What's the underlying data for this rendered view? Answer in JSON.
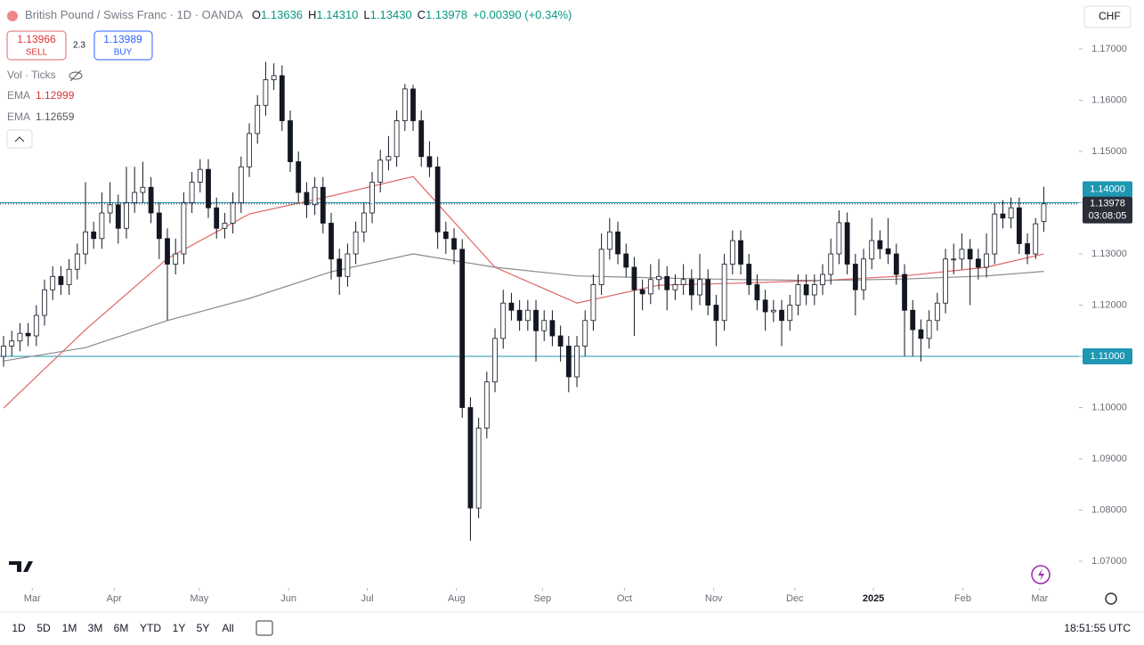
{
  "header": {
    "symbol": "British Pound / Swiss Franc · 1D · OANDA",
    "ohlc": [
      {
        "key": "O",
        "value": "1.13636"
      },
      {
        "key": "H",
        "value": "1.14310"
      },
      {
        "key": "L",
        "value": "1.13430"
      },
      {
        "key": "C",
        "value": "1.13978"
      }
    ],
    "change": "+0.00390 (+0.34%)"
  },
  "trade": {
    "sell_price": "1.13966",
    "sell": "SELL",
    "spread": "2.3",
    "buy_price": "1.13989",
    "buy": "BUY"
  },
  "currency": "CHF",
  "volume": "Vol · Ticks",
  "toolbar": {
    "ranges": [
      "1D",
      "5D",
      "1M",
      "3M",
      "6M",
      "YTD",
      "1Y",
      "5Y",
      "All"
    ],
    "clock": "18:51:55 UTC"
  },
  "chart_data": {
    "type": "candlestick",
    "open": [
      1.11,
      1.112,
      1.113,
      1.1145,
      1.114,
      1.118,
      1.123,
      1.1256,
      1.124,
      1.127,
      1.13,
      1.1343,
      1.133,
      1.138,
      1.1396,
      1.135,
      1.14,
      1.142,
      1.143,
      1.138,
      1.133,
      1.128,
      1.13,
      1.14,
      1.144,
      1.1465,
      1.139,
      1.135,
      1.136,
      1.14,
      1.147,
      1.1535,
      1.159,
      1.164,
      1.1648,
      1.156,
      1.148,
      1.142,
      1.1396,
      1.143,
      1.136,
      1.129,
      1.1256,
      1.13,
      1.1343,
      1.138,
      1.144,
      1.1483,
      1.149,
      1.156,
      1.1622,
      1.156,
      1.149,
      1.147,
      1.1343,
      1.133,
      1.1309,
      1.1,
      1.0804,
      1.096,
      1.105,
      1.1135,
      1.1204,
      1.119,
      1.117,
      1.119,
      1.115,
      1.117,
      1.114,
      1.112,
      1.106,
      1.112,
      1.117,
      1.124,
      1.1309,
      1.1343,
      1.13,
      1.1274,
      1.123,
      1.1222,
      1.125,
      1.1256,
      1.123,
      1.124,
      1.125,
      1.122,
      1.125,
      1.12,
      1.117,
      1.128,
      1.1326,
      1.128,
      1.124,
      1.121,
      1.1187,
      1.119,
      1.117,
      1.12,
      1.124,
      1.122,
      1.124,
      1.126,
      1.13,
      1.1361,
      1.128,
      1.123,
      1.129,
      1.1326,
      1.131,
      1.13,
      1.126,
      1.119,
      1.1152,
      1.1135,
      1.117,
      1.1204,
      1.129,
      1.129,
      1.1309,
      1.129,
      1.1274,
      1.13,
      1.1378,
      1.137,
      1.139,
      1.132,
      1.13,
      1.13636
    ],
    "high": [
      1.114,
      1.115,
      1.1165,
      1.1165,
      1.12,
      1.125,
      1.1276,
      1.1276,
      1.129,
      1.132,
      1.144,
      1.1363,
      1.142,
      1.144,
      1.1416,
      1.147,
      1.147,
      1.148,
      1.145,
      1.14,
      1.135,
      1.133,
      1.142,
      1.146,
      1.1485,
      1.1485,
      1.141,
      1.138,
      1.142,
      1.149,
      1.1555,
      1.161,
      1.1675,
      1.1672,
      1.1668,
      1.158,
      1.15,
      1.144,
      1.145,
      1.145,
      1.138,
      1.131,
      1.132,
      1.1363,
      1.14,
      1.146,
      1.1503,
      1.153,
      1.158,
      1.1632,
      1.163,
      1.158,
      1.152,
      1.149,
      1.1363,
      1.135,
      1.1329,
      1.102,
      1.098,
      1.107,
      1.1155,
      1.123,
      1.1224,
      1.121,
      1.121,
      1.121,
      1.119,
      1.119,
      1.116,
      1.114,
      1.114,
      1.119,
      1.126,
      1.134,
      1.137,
      1.1363,
      1.132,
      1.1294,
      1.125,
      1.128,
      1.129,
      1.1276,
      1.126,
      1.128,
      1.127,
      1.13,
      1.127,
      1.122,
      1.13,
      1.1346,
      1.1346,
      1.13,
      1.126,
      1.123,
      1.121,
      1.121,
      1.122,
      1.126,
      1.126,
      1.126,
      1.128,
      1.133,
      1.1385,
      1.1381,
      1.13,
      1.131,
      1.137,
      1.1346,
      1.137,
      1.132,
      1.128,
      1.121,
      1.1172,
      1.119,
      1.1224,
      1.131,
      1.132,
      1.134,
      1.1329,
      1.131,
      1.134,
      1.1398,
      1.1405,
      1.141,
      1.141,
      1.134,
      1.137,
      1.1431
    ],
    "low": [
      1.108,
      1.11,
      1.111,
      1.112,
      1.112,
      1.116,
      1.121,
      1.122,
      1.122,
      1.125,
      1.128,
      1.131,
      1.131,
      1.136,
      1.132,
      1.133,
      1.138,
      1.14,
      1.136,
      1.129,
      1.117,
      1.126,
      1.128,
      1.138,
      1.142,
      1.137,
      1.133,
      1.133,
      1.134,
      1.138,
      1.145,
      1.1515,
      1.157,
      1.162,
      1.154,
      1.146,
      1.14,
      1.137,
      1.1376,
      1.134,
      1.125,
      1.122,
      1.1236,
      1.128,
      1.1323,
      1.136,
      1.142,
      1.1463,
      1.147,
      1.154,
      1.154,
      1.147,
      1.145,
      1.131,
      1.13,
      1.128,
      1.098,
      1.074,
      1.0784,
      1.094,
      1.103,
      1.1115,
      1.117,
      1.115,
      1.115,
      1.109,
      1.113,
      1.112,
      1.109,
      1.103,
      1.104,
      1.11,
      1.115,
      1.122,
      1.1289,
      1.128,
      1.1254,
      1.114,
      1.119,
      1.1202,
      1.123,
      1.119,
      1.121,
      1.122,
      1.119,
      1.12,
      1.118,
      1.112,
      1.115,
      1.126,
      1.126,
      1.122,
      1.119,
      1.115,
      1.1167,
      1.112,
      1.115,
      1.118,
      1.12,
      1.12,
      1.122,
      1.124,
      1.128,
      1.126,
      1.118,
      1.121,
      1.127,
      1.129,
      1.128,
      1.124,
      1.11,
      1.11,
      1.109,
      1.1115,
      1.115,
      1.1184,
      1.126,
      1.127,
      1.12,
      1.125,
      1.1254,
      1.128,
      1.135,
      1.135,
      1.13,
      1.128,
      1.129,
      1.1343
    ],
    "close": [
      1.112,
      1.113,
      1.1145,
      1.114,
      1.118,
      1.123,
      1.1256,
      1.124,
      1.127,
      1.13,
      1.1343,
      1.133,
      1.138,
      1.1396,
      1.135,
      1.14,
      1.142,
      1.143,
      1.138,
      1.133,
      1.128,
      1.13,
      1.14,
      1.144,
      1.1465,
      1.139,
      1.135,
      1.136,
      1.14,
      1.147,
      1.1535,
      1.159,
      1.164,
      1.1648,
      1.156,
      1.148,
      1.142,
      1.1396,
      1.143,
      1.136,
      1.129,
      1.1256,
      1.13,
      1.1343,
      1.138,
      1.144,
      1.1483,
      1.149,
      1.156,
      1.1622,
      1.156,
      1.149,
      1.147,
      1.1343,
      1.133,
      1.1309,
      1.1,
      1.0804,
      1.096,
      1.105,
      1.1135,
      1.1204,
      1.119,
      1.117,
      1.119,
      1.115,
      1.117,
      1.114,
      1.112,
      1.106,
      1.112,
      1.117,
      1.124,
      1.1309,
      1.1343,
      1.13,
      1.1274,
      1.123,
      1.1222,
      1.125,
      1.1256,
      1.123,
      1.124,
      1.125,
      1.122,
      1.125,
      1.12,
      1.117,
      1.128,
      1.1326,
      1.128,
      1.124,
      1.121,
      1.1187,
      1.119,
      1.117,
      1.12,
      1.124,
      1.122,
      1.124,
      1.126,
      1.13,
      1.1361,
      1.128,
      1.123,
      1.129,
      1.1326,
      1.131,
      1.13,
      1.126,
      1.119,
      1.1152,
      1.1135,
      1.117,
      1.1204,
      1.129,
      1.129,
      1.1309,
      1.129,
      1.1274,
      1.13,
      1.1378,
      1.137,
      1.139,
      1.132,
      1.13,
      1.13588,
      1.13978
    ],
    "series": [
      {
        "name": "EMA",
        "color": "#e06666",
        "x": [
          0,
          10,
          20,
          30,
          40,
          50,
          60,
          70,
          80,
          90,
          100,
          110,
          120,
          127
        ],
        "values": [
          1.0999,
          1.1152,
          1.1291,
          1.1378,
          1.1413,
          1.1451,
          1.1274,
          1.1204,
          1.1239,
          1.1243,
          1.1248,
          1.1257,
          1.1274,
          1.12999
        ]
      },
      {
        "name": "EMA",
        "color": "#8a8a8a",
        "x": [
          0,
          10,
          20,
          30,
          40,
          50,
          60,
          70,
          80,
          90,
          100,
          110,
          120,
          127
        ],
        "values": [
          1.1091,
          1.1117,
          1.117,
          1.1213,
          1.1265,
          1.13,
          1.1274,
          1.1257,
          1.1253,
          1.125,
          1.1248,
          1.1251,
          1.1257,
          1.12659
        ]
      }
    ],
    "levels": [
      {
        "value": 1.14,
        "label": "1.14000",
        "color": "#1e97b3"
      },
      {
        "value": 1.11,
        "label": "1.11000",
        "color": "#1e97b3"
      }
    ],
    "last_label": "1.13978",
    "countdown": "03:08:05",
    "xlim": [
      -0.435,
      131.3
    ],
    "ylim": [
      1.06478,
      1.17957
    ],
    "xticks": [
      {
        "value": 3.5,
        "label": "Mar"
      },
      {
        "value": 13.5,
        "label": "Apr"
      },
      {
        "value": 23.9,
        "label": "May"
      },
      {
        "value": 34.8,
        "label": "Jun"
      },
      {
        "value": 44.4,
        "label": "Jul"
      },
      {
        "value": 55.3,
        "label": "Aug"
      },
      {
        "value": 65.8,
        "label": "Sep"
      },
      {
        "value": 75.8,
        "label": "Oct"
      },
      {
        "value": 86.7,
        "label": "Nov"
      },
      {
        "value": 96.6,
        "label": "Dec"
      },
      {
        "value": 106.2,
        "label": "2025"
      },
      {
        "value": 117.1,
        "label": "Feb"
      },
      {
        "value": 126.5,
        "label": "Mar"
      }
    ],
    "yticks": [
      {
        "value": 1.07,
        "label": "1.07000"
      },
      {
        "value": 1.08,
        "label": "1.08000"
      },
      {
        "value": 1.09,
        "label": "1.09000"
      },
      {
        "value": 1.1,
        "label": "1.10000"
      },
      {
        "value": 1.11,
        "label": "1.11000"
      },
      {
        "value": 1.12,
        "label": "1.12000"
      },
      {
        "value": 1.13,
        "label": "1.13000"
      },
      {
        "value": 1.14,
        "label": "1.14000"
      },
      {
        "value": 1.15,
        "label": "1.15000"
      },
      {
        "value": 1.16,
        "label": "1.16000"
      },
      {
        "value": 1.17,
        "label": "1.17000"
      }
    ],
    "grid": false
  }
}
